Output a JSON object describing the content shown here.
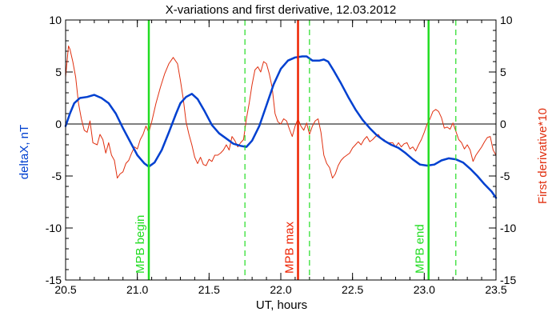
{
  "chart_data": {
    "type": "line",
    "title": "X-variations and first derivative, 12.03.2012",
    "xlabel": "UT, hours",
    "ylabel_left": "deltaX, nT",
    "ylabel_right": "First derivative*10",
    "xlim": [
      20.5,
      23.5
    ],
    "ylim_left": [
      -15,
      10
    ],
    "ylim_right": [
      -15,
      10
    ],
    "x_ticks": [
      "20.5",
      "21.0",
      "21.5",
      "22.0",
      "22.5",
      "23.0",
      "23.5"
    ],
    "y_ticks_left": [
      "-15",
      "-10",
      "-5",
      "0",
      "5",
      "10"
    ],
    "y_ticks_right": [
      "-15",
      "-10",
      "-5",
      "0",
      "5",
      "10"
    ],
    "grid": false,
    "colors": {
      "deltaX": "#0040d0",
      "derivative": "#e03010",
      "mpb_begin_end": "#22dd22",
      "mpb_max": "#ee2200",
      "zero_line": "#000000"
    },
    "series": [
      {
        "axis": "left",
        "x": [
          20.5,
          20.53,
          20.56,
          20.6,
          20.65,
          20.7,
          20.75,
          20.8,
          20.85,
          20.9,
          20.95,
          21.0,
          21.05,
          21.08,
          21.12,
          21.17,
          21.22,
          21.27,
          21.3,
          21.34,
          21.38,
          21.42,
          21.47,
          21.52,
          21.57,
          21.62,
          21.67,
          21.72,
          21.76,
          21.8,
          21.85,
          21.9,
          21.95,
          22.0,
          22.05,
          22.1,
          22.15,
          22.18,
          22.22,
          22.27,
          22.3,
          22.33,
          22.37,
          22.42,
          22.47,
          22.52,
          22.57,
          22.62,
          22.67,
          22.72,
          22.77,
          22.82,
          22.87,
          22.92,
          22.97,
          23.02,
          23.07,
          23.12,
          23.17,
          23.22,
          23.27,
          23.32,
          23.37,
          23.42,
          23.47,
          23.5
        ],
        "y": [
          -0.2,
          1.0,
          2.0,
          2.5,
          2.6,
          2.8,
          2.5,
          2.0,
          1.0,
          -0.4,
          -1.7,
          -3.0,
          -3.8,
          -4.1,
          -3.7,
          -2.5,
          -0.8,
          1.0,
          2.0,
          2.6,
          2.9,
          2.4,
          1.2,
          -0.1,
          -0.9,
          -1.4,
          -1.9,
          -2.1,
          -2.2,
          -1.6,
          -0.2,
          1.8,
          3.8,
          5.3,
          6.1,
          6.4,
          6.5,
          6.5,
          6.1,
          6.1,
          6.2,
          6.0,
          5.1,
          3.9,
          2.6,
          1.4,
          0.4,
          -0.4,
          -1.1,
          -1.6,
          -2.0,
          -2.3,
          -2.8,
          -3.4,
          -3.9,
          -4.0,
          -3.9,
          -3.5,
          -3.3,
          -3.4,
          -3.7,
          -4.3,
          -5.0,
          -5.8,
          -6.5,
          -7.1
        ]
      },
      {
        "axis": "right",
        "x": [
          20.5,
          20.51,
          20.52,
          20.53,
          20.55,
          20.57,
          20.59,
          20.61,
          20.63,
          20.65,
          20.67,
          20.69,
          20.72,
          20.74,
          20.76,
          20.78,
          20.8,
          20.82,
          20.84,
          20.86,
          20.88,
          20.9,
          20.92,
          20.94,
          20.96,
          20.98,
          21.0,
          21.02,
          21.04,
          21.06,
          21.08,
          21.1,
          21.13,
          21.16,
          21.19,
          21.22,
          21.25,
          21.28,
          21.3,
          21.32,
          21.34,
          21.36,
          21.38,
          21.4,
          21.42,
          21.44,
          21.46,
          21.48,
          21.5,
          21.52,
          21.54,
          21.56,
          21.58,
          21.6,
          21.62,
          21.64,
          21.66,
          21.68,
          21.7,
          21.72,
          21.74,
          21.76,
          21.78,
          21.8,
          21.82,
          21.84,
          21.86,
          21.88,
          21.9,
          21.92,
          21.94,
          21.96,
          21.98,
          22.0,
          22.02,
          22.04,
          22.06,
          22.08,
          22.1,
          22.12,
          22.14,
          22.16,
          22.18,
          22.2,
          22.22,
          22.24,
          22.26,
          22.28,
          22.3,
          22.32,
          22.34,
          22.36,
          22.38,
          22.4,
          22.42,
          22.44,
          22.46,
          22.48,
          22.5,
          22.52,
          22.54,
          22.56,
          22.58,
          22.6,
          22.62,
          22.64,
          22.66,
          22.68,
          22.7,
          22.72,
          22.74,
          22.76,
          22.78,
          22.8,
          22.82,
          22.84,
          22.86,
          22.88,
          22.9,
          22.92,
          22.94,
          22.96,
          22.98,
          23.0,
          23.02,
          23.04,
          23.06,
          23.08,
          23.1,
          23.12,
          23.14,
          23.16,
          23.18,
          23.2,
          23.22,
          23.24,
          23.26,
          23.28,
          23.3,
          23.32,
          23.34,
          23.36,
          23.38,
          23.4,
          23.42,
          23.44,
          23.46,
          23.48,
          23.5
        ],
        "y": [
          4.5,
          6.0,
          7.5,
          7.2,
          6.0,
          4.5,
          2.0,
          0.5,
          -0.6,
          -0.8,
          0.3,
          -1.8,
          -2.0,
          -1.0,
          -1.5,
          -2.8,
          -1.8,
          -3.0,
          -3.5,
          -5.2,
          -4.8,
          -4.6,
          -3.8,
          -3.5,
          -2.8,
          -2.2,
          -2.4,
          -1.5,
          -1.0,
          -0.2,
          -0.8,
          0.2,
          2.0,
          3.5,
          4.8,
          5.8,
          6.4,
          5.8,
          4.2,
          2.4,
          0.2,
          -1.0,
          -2.0,
          -3.2,
          -3.8,
          -3.2,
          -3.9,
          -4.0,
          -3.4,
          -3.6,
          -3.0,
          -3.0,
          -2.8,
          -2.5,
          -2.0,
          -2.5,
          -1.2,
          -1.6,
          -2.2,
          -1.8,
          -1.5,
          0.5,
          2.0,
          3.8,
          5.2,
          5.5,
          5.0,
          6.0,
          5.8,
          4.8,
          3.5,
          1.0,
          0.2,
          0.0,
          0.5,
          0.3,
          -0.5,
          -1.2,
          -0.2,
          0.5,
          -0.2,
          -0.6,
          0.1,
          -1.0,
          -0.2,
          0.3,
          0.5,
          -0.8,
          -3.0,
          -3.8,
          -4.2,
          -5.2,
          -4.8,
          -4.0,
          -3.5,
          -3.2,
          -3.0,
          -2.8,
          -2.3,
          -2.0,
          -1.7,
          -2.0,
          -1.5,
          -1.2,
          -1.7,
          -1.5,
          -1.2,
          -1.0,
          -1.4,
          -1.5,
          -1.8,
          -1.8,
          -1.8,
          -2.2,
          -1.8,
          -2.2,
          -1.9,
          -1.8,
          -2.4,
          -2.2,
          -2.6,
          -2.0,
          -1.5,
          -0.8,
          0.0,
          0.5,
          1.2,
          1.4,
          1.2,
          0.6,
          -0.4,
          -0.3,
          -0.5,
          0.1,
          -0.7,
          -1.5,
          -1.8,
          -2.4,
          -2.0,
          -2.5,
          -3.6,
          -3.0,
          -2.6,
          -2.2,
          -1.7,
          -1.3,
          -1.2,
          -2.5,
          -3.0
        ]
      }
    ],
    "markers": [
      {
        "x": 21.08,
        "style": "solid",
        "color_key": "mpb_begin_end",
        "label": "MPB begin"
      },
      {
        "x": 22.12,
        "style": "solid",
        "color_key": "mpb_max",
        "label": "MPB max"
      },
      {
        "x": 23.03,
        "style": "solid",
        "color_key": "mpb_begin_end",
        "label": "MPB end"
      },
      {
        "x": 21.75,
        "style": "dashed",
        "color_key": "mpb_begin_end",
        "label": ""
      },
      {
        "x": 22.2,
        "style": "dashed",
        "color_key": "mpb_begin_end",
        "label": ""
      },
      {
        "x": 23.22,
        "style": "dashed",
        "color_key": "mpb_begin_end",
        "label": ""
      }
    ]
  }
}
